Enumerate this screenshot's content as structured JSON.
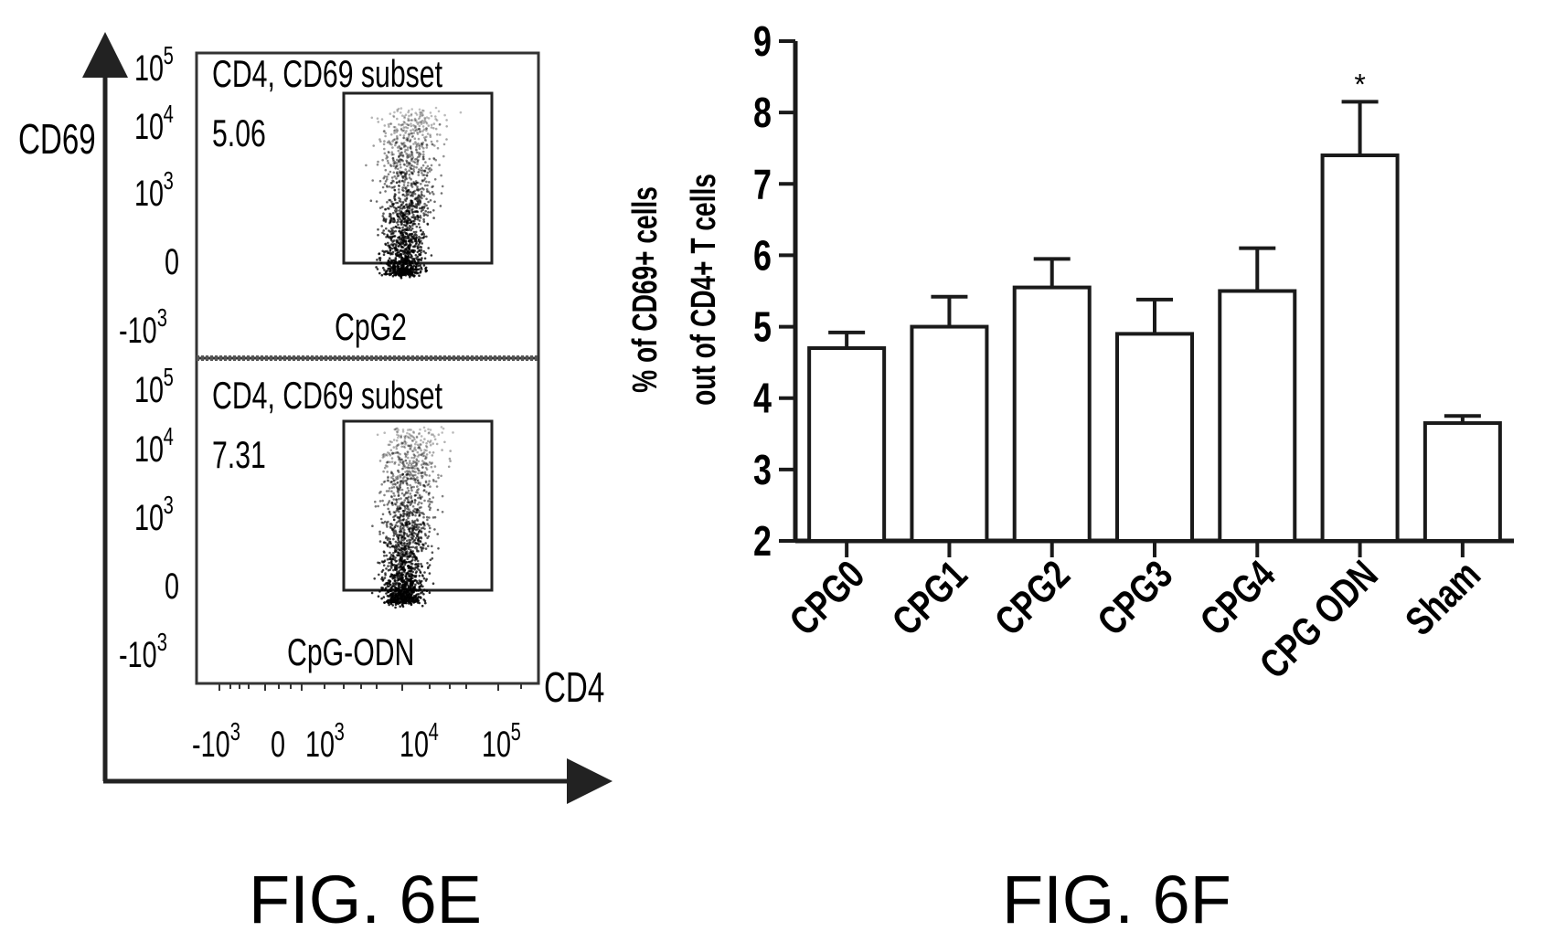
{
  "figure_e": {
    "caption": "FIG. 6E",
    "y_axis_label": "CD69",
    "x_axis_label": "CD4",
    "y_ticks": [
      "10",
      "10",
      "10",
      "0",
      "-10"
    ],
    "y_tick_exponents": [
      "5",
      "4",
      "3",
      "",
      "3"
    ],
    "x_ticks": [
      "-10",
      "0",
      "10",
      "10",
      "10"
    ],
    "x_tick_exponents": [
      "3",
      "",
      "3",
      "4",
      "5"
    ],
    "panels": [
      {
        "gate_title": "CD4, CD69 subset",
        "percent": "5.06",
        "sample": "CpG2"
      },
      {
        "gate_title": "CD4, CD69 subset",
        "percent": "7.31",
        "sample": "CpG-ODN"
      }
    ]
  },
  "figure_f": {
    "caption": "FIG. 6F",
    "ylabel_line1": "% of CD69+ cells",
    "ylabel_line2": "out of CD4+ T cells",
    "significance_marker": "*"
  },
  "chart_data": {
    "type": "bar",
    "categories": [
      "CPG0",
      "CPG1",
      "CPG2",
      "CPG3",
      "CPG4",
      "CPG ODN",
      "Sham"
    ],
    "values": [
      4.7,
      5.0,
      5.55,
      4.9,
      5.5,
      7.4,
      3.65
    ],
    "errors": [
      0.22,
      0.42,
      0.4,
      0.48,
      0.6,
      0.75,
      0.1
    ],
    "ylim": [
      2,
      9
    ],
    "yticks": [
      2,
      3,
      4,
      5,
      6,
      7,
      8,
      9
    ],
    "significant": [
      false,
      false,
      false,
      false,
      false,
      true,
      false
    ],
    "colors": {
      "bar_fill": "#ffffff",
      "stroke": "#1a1a1a"
    }
  }
}
